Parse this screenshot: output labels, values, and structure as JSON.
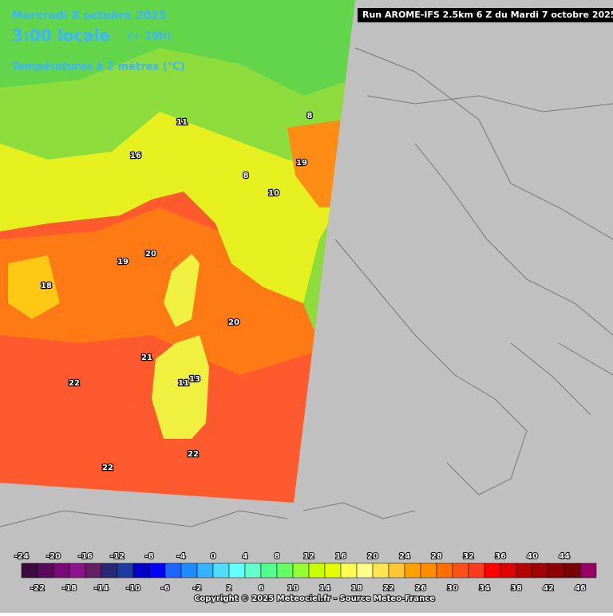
{
  "header": {
    "date": "Mercredi 8 octobre 2025",
    "time": "3:00 locale",
    "lead": "(+ 19h)",
    "variable": "Températures à 2 mètres (°C)"
  },
  "run": "Run AROME-IFS 2.5km 6 Z du Mardi 7 octobre 2025",
  "copyright": "Copyright © 2025 Meteociel.fr - Source Meteo-France",
  "legend": {
    "ticks": [
      -24,
      -22,
      -20,
      -18,
      -16,
      -14,
      -12,
      -10,
      -8,
      -6,
      -4,
      -2,
      0,
      2,
      4,
      6,
      8,
      10,
      12,
      14,
      16,
      18,
      20,
      22,
      24,
      26,
      28,
      30,
      32,
      34,
      36,
      38,
      40,
      42,
      44,
      46
    ],
    "colors": [
      "#3c0a3c",
      "#5a0a5a",
      "#780a78",
      "#8c148c",
      "#641e64",
      "#282878",
      "#1e3ca0",
      "#0000c8",
      "#0000ff",
      "#1e64ff",
      "#1e8cff",
      "#32b4ff",
      "#50dcff",
      "#64ffff",
      "#64ffc8",
      "#50ff8c",
      "#64ff64",
      "#96ff32",
      "#c8ff00",
      "#e6ff00",
      "#ffff50",
      "#ffff8c",
      "#ffe650",
      "#ffc832",
      "#ffa000",
      "#ff8c00",
      "#ff6e00",
      "#ff5014",
      "#ff3c1e",
      "#ff0000",
      "#dc0000",
      "#b40000",
      "#a00000",
      "#8c0000",
      "#780000",
      "#960064"
    ]
  },
  "map_labels": [
    "18",
    "19",
    "20",
    "20",
    "21",
    "22",
    "22",
    "22",
    "8",
    "10",
    "11",
    "16",
    "19",
    "13",
    "11",
    "8"
  ]
}
